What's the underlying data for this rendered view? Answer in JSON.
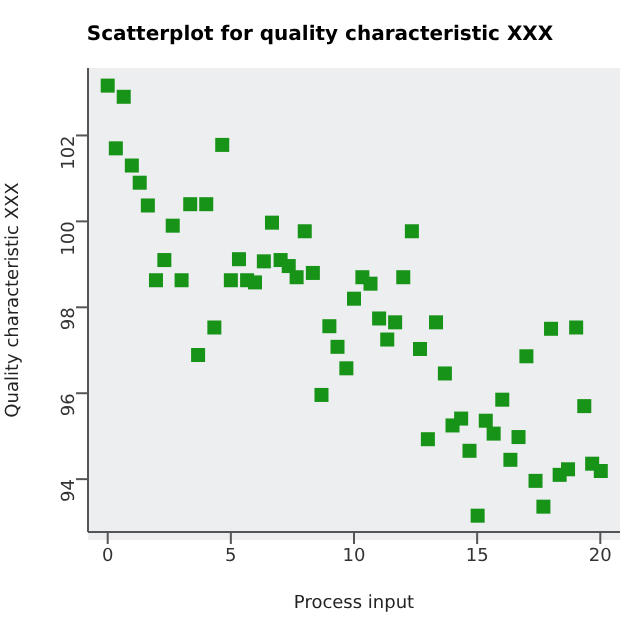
{
  "chart_data": {
    "type": "scatter",
    "title": "Scatterplot for quality characteristic XXX",
    "xlabel": "Process input",
    "ylabel": "Quality characteristic XXX",
    "x": [
      0,
      0.65,
      0.33,
      0.98,
      1.3,
      1.63,
      1.96,
      2.3,
      2.64,
      3.0,
      3.35,
      4.0,
      4.65,
      3.67,
      4.33,
      5.0,
      5.33,
      5.66,
      5.98,
      6.34,
      6.67,
      7.02,
      7.35,
      7.67,
      8.0,
      8.33,
      9.0,
      9.33,
      9.69,
      8.68,
      10.0,
      10.34,
      10.67,
      12.35,
      12.0,
      11.02,
      11.67,
      13.33,
      18.0,
      19.02,
      11.35,
      12.68,
      13.69,
      17.0,
      19.35,
      16.02,
      14.0,
      14.35,
      15.35,
      15.67,
      16.68,
      13.0,
      14.69,
      16.35,
      17.37,
      18.35,
      18.69,
      19.67,
      20.02,
      17.69,
      15.02
    ],
    "series": [
      {
        "color": "#179317",
        "values": [
          103.16,
          102.9,
          101.7,
          101.3,
          100.9,
          100.37,
          98.63,
          99.1,
          99.9,
          98.63,
          100.4,
          100.4,
          101.78,
          96.89,
          97.53,
          98.63,
          99.12,
          98.63,
          98.58,
          99.07,
          99.97,
          99.1,
          98.96,
          98.7,
          99.77,
          98.8,
          97.56,
          97.08,
          96.58,
          95.96,
          98.2,
          98.7,
          98.55,
          99.77,
          98.7,
          97.74,
          97.65,
          97.65,
          97.5,
          97.53,
          97.25,
          97.03,
          96.46,
          96.86,
          95.7,
          95.85,
          95.25,
          95.41,
          95.36,
          95.06,
          94.98,
          94.93,
          94.66,
          94.45,
          93.96,
          94.1,
          94.23,
          94.36,
          94.19,
          93.36,
          93.15
        ]
      }
    ],
    "xlim": [
      -0.8,
      20.8
    ],
    "ylim": [
      92.77,
      103.57
    ],
    "xticks": [
      0,
      5,
      10,
      15,
      20
    ],
    "yticks": [
      94,
      96,
      98,
      100,
      102
    ],
    "marker": "square",
    "grid": false,
    "legend": false
  }
}
